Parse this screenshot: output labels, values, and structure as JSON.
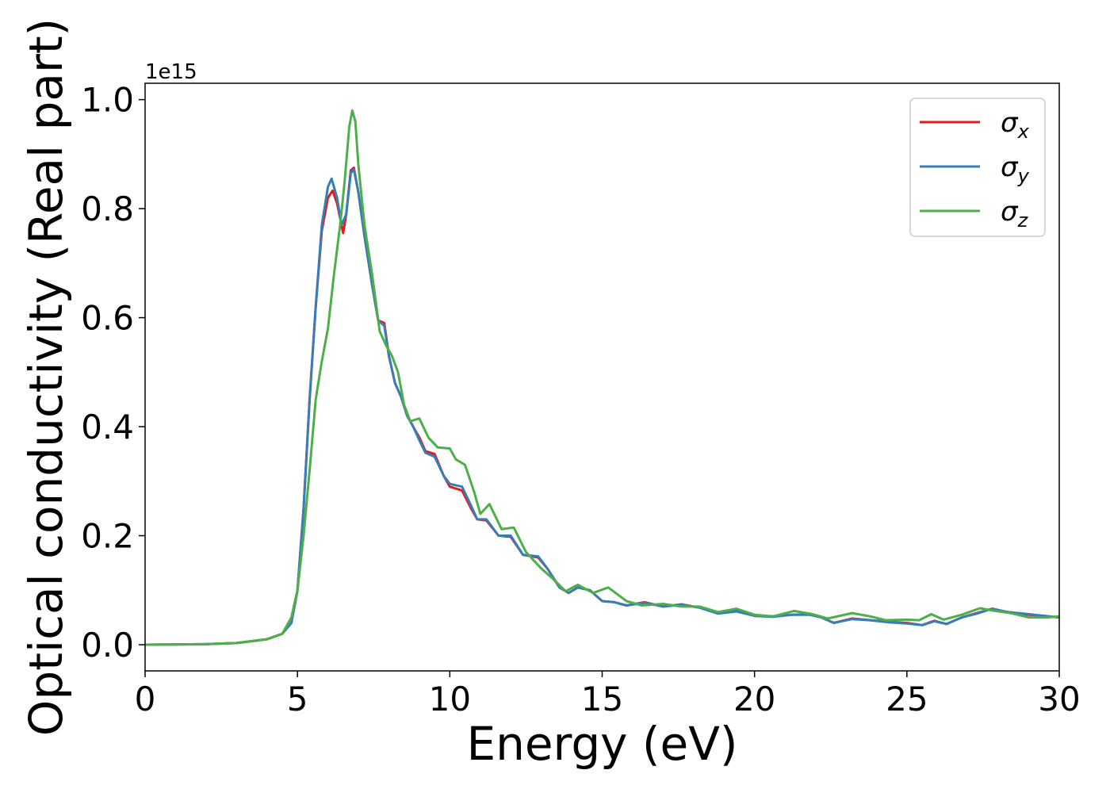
{
  "chart_data": {
    "type": "line",
    "title": "",
    "xlabel": "Energy (eV)",
    "ylabel": "Optical conductivity (Real part)",
    "y_offset_text": "1e15",
    "xlim": [
      0,
      30
    ],
    "ylim": [
      -0.048,
      1.03
    ],
    "x_ticks": [
      0,
      5,
      10,
      15,
      20,
      25,
      30
    ],
    "x_tick_labels": [
      "0",
      "5",
      "10",
      "15",
      "20",
      "25",
      "30"
    ],
    "y_ticks": [
      0.0,
      0.2,
      0.4,
      0.6,
      0.8,
      1.0
    ],
    "y_tick_labels": [
      "0.0",
      "0.2",
      "0.4",
      "0.6",
      "0.8",
      "1.0"
    ],
    "grid": false,
    "legend_position": "top-right",
    "series": [
      {
        "name": "σx",
        "symbol": "σ",
        "subscript": "x",
        "color": "#e41a1c",
        "points": [
          [
            0,
            0.0
          ],
          [
            2,
            0.001
          ],
          [
            3,
            0.003
          ],
          [
            4,
            0.01
          ],
          [
            4.5,
            0.02
          ],
          [
            4.8,
            0.04
          ],
          [
            5.0,
            0.1
          ],
          [
            5.2,
            0.25
          ],
          [
            5.4,
            0.45
          ],
          [
            5.6,
            0.62
          ],
          [
            5.8,
            0.76
          ],
          [
            6.0,
            0.82
          ],
          [
            6.15,
            0.833
          ],
          [
            6.3,
            0.81
          ],
          [
            6.5,
            0.755
          ],
          [
            6.6,
            0.79
          ],
          [
            6.75,
            0.87
          ],
          [
            6.85,
            0.875
          ],
          [
            7.0,
            0.83
          ],
          [
            7.2,
            0.75
          ],
          [
            7.45,
            0.66
          ],
          [
            7.65,
            0.595
          ],
          [
            7.85,
            0.59
          ],
          [
            8.0,
            0.53
          ],
          [
            8.2,
            0.48
          ],
          [
            8.4,
            0.455
          ],
          [
            8.6,
            0.42
          ],
          [
            8.8,
            0.4
          ],
          [
            9.0,
            0.38
          ],
          [
            9.2,
            0.355
          ],
          [
            9.5,
            0.35
          ],
          [
            9.8,
            0.31
          ],
          [
            10.0,
            0.29
          ],
          [
            10.4,
            0.283
          ],
          [
            10.7,
            0.25
          ],
          [
            10.9,
            0.23
          ],
          [
            11.2,
            0.228
          ],
          [
            11.6,
            0.2
          ],
          [
            12.0,
            0.198
          ],
          [
            12.4,
            0.165
          ],
          [
            12.9,
            0.16
          ],
          [
            13.2,
            0.14
          ],
          [
            13.6,
            0.105
          ],
          [
            13.9,
            0.095
          ],
          [
            14.2,
            0.105
          ],
          [
            14.6,
            0.1
          ],
          [
            15.0,
            0.08
          ],
          [
            15.4,
            0.078
          ],
          [
            15.8,
            0.072
          ],
          [
            16.4,
            0.078
          ],
          [
            17.0,
            0.07
          ],
          [
            17.6,
            0.074
          ],
          [
            18.2,
            0.068
          ],
          [
            18.8,
            0.058
          ],
          [
            19.4,
            0.062
          ],
          [
            20.0,
            0.053
          ],
          [
            20.6,
            0.052
          ],
          [
            21.2,
            0.055
          ],
          [
            21.8,
            0.056
          ],
          [
            22.2,
            0.05
          ],
          [
            22.6,
            0.04
          ],
          [
            23.2,
            0.048
          ],
          [
            23.8,
            0.045
          ],
          [
            24.4,
            0.042
          ],
          [
            25.0,
            0.04
          ],
          [
            25.5,
            0.036
          ],
          [
            25.9,
            0.044
          ],
          [
            26.3,
            0.038
          ],
          [
            26.8,
            0.05
          ],
          [
            27.3,
            0.058
          ],
          [
            27.8,
            0.066
          ],
          [
            28.3,
            0.06
          ],
          [
            29.0,
            0.055
          ],
          [
            29.5,
            0.053
          ],
          [
            30.0,
            0.05
          ]
        ]
      },
      {
        "name": "σy",
        "symbol": "σ",
        "subscript": "y",
        "color": "#377eb8",
        "points": [
          [
            0,
            0.0
          ],
          [
            2,
            0.001
          ],
          [
            3,
            0.003
          ],
          [
            4,
            0.01
          ],
          [
            4.5,
            0.02
          ],
          [
            4.8,
            0.04
          ],
          [
            5.0,
            0.1
          ],
          [
            5.2,
            0.25
          ],
          [
            5.4,
            0.45
          ],
          [
            5.6,
            0.62
          ],
          [
            5.8,
            0.77
          ],
          [
            6.0,
            0.84
          ],
          [
            6.12,
            0.855
          ],
          [
            6.3,
            0.82
          ],
          [
            6.45,
            0.77
          ],
          [
            6.6,
            0.79
          ],
          [
            6.75,
            0.865
          ],
          [
            6.85,
            0.872
          ],
          [
            7.0,
            0.83
          ],
          [
            7.2,
            0.75
          ],
          [
            7.45,
            0.66
          ],
          [
            7.65,
            0.595
          ],
          [
            7.85,
            0.585
          ],
          [
            8.0,
            0.53
          ],
          [
            8.2,
            0.48
          ],
          [
            8.4,
            0.455
          ],
          [
            8.6,
            0.42
          ],
          [
            8.8,
            0.4
          ],
          [
            9.0,
            0.375
          ],
          [
            9.2,
            0.352
          ],
          [
            9.5,
            0.345
          ],
          [
            9.8,
            0.31
          ],
          [
            10.0,
            0.295
          ],
          [
            10.4,
            0.29
          ],
          [
            10.7,
            0.255
          ],
          [
            10.9,
            0.23
          ],
          [
            11.2,
            0.23
          ],
          [
            11.6,
            0.2
          ],
          [
            12.0,
            0.2
          ],
          [
            12.4,
            0.165
          ],
          [
            12.9,
            0.162
          ],
          [
            13.2,
            0.14
          ],
          [
            13.6,
            0.105
          ],
          [
            13.9,
            0.095
          ],
          [
            14.2,
            0.105
          ],
          [
            14.6,
            0.1
          ],
          [
            15.0,
            0.08
          ],
          [
            15.4,
            0.078
          ],
          [
            15.8,
            0.072
          ],
          [
            16.4,
            0.077
          ],
          [
            17.0,
            0.07
          ],
          [
            17.6,
            0.073
          ],
          [
            18.2,
            0.068
          ],
          [
            18.8,
            0.057
          ],
          [
            19.4,
            0.061
          ],
          [
            20.0,
            0.053
          ],
          [
            20.6,
            0.051
          ],
          [
            21.2,
            0.055
          ],
          [
            21.8,
            0.055
          ],
          [
            22.2,
            0.05
          ],
          [
            22.6,
            0.04
          ],
          [
            23.2,
            0.047
          ],
          [
            23.8,
            0.045
          ],
          [
            24.4,
            0.041
          ],
          [
            25.0,
            0.039
          ],
          [
            25.5,
            0.036
          ],
          [
            25.9,
            0.043
          ],
          [
            26.3,
            0.038
          ],
          [
            26.8,
            0.05
          ],
          [
            27.3,
            0.057
          ],
          [
            27.8,
            0.066
          ],
          [
            28.3,
            0.06
          ],
          [
            29.0,
            0.056
          ],
          [
            29.5,
            0.053
          ],
          [
            30.0,
            0.05
          ]
        ]
      },
      {
        "name": "σz",
        "symbol": "σ",
        "subscript": "z",
        "color": "#4daf4a",
        "points": [
          [
            0,
            0.0
          ],
          [
            2,
            0.001
          ],
          [
            3,
            0.003
          ],
          [
            4,
            0.01
          ],
          [
            4.5,
            0.02
          ],
          [
            4.8,
            0.05
          ],
          [
            5.0,
            0.1
          ],
          [
            5.2,
            0.2
          ],
          [
            5.4,
            0.32
          ],
          [
            5.6,
            0.45
          ],
          [
            5.8,
            0.52
          ],
          [
            6.0,
            0.58
          ],
          [
            6.2,
            0.68
          ],
          [
            6.4,
            0.77
          ],
          [
            6.55,
            0.85
          ],
          [
            6.7,
            0.95
          ],
          [
            6.8,
            0.98
          ],
          [
            6.9,
            0.96
          ],
          [
            7.0,
            0.88
          ],
          [
            7.2,
            0.77
          ],
          [
            7.45,
            0.68
          ],
          [
            7.7,
            0.575
          ],
          [
            7.9,
            0.55
          ],
          [
            8.1,
            0.53
          ],
          [
            8.3,
            0.5
          ],
          [
            8.5,
            0.44
          ],
          [
            8.7,
            0.41
          ],
          [
            9.0,
            0.415
          ],
          [
            9.3,
            0.38
          ],
          [
            9.6,
            0.362
          ],
          [
            10.0,
            0.36
          ],
          [
            10.2,
            0.34
          ],
          [
            10.5,
            0.33
          ],
          [
            10.8,
            0.28
          ],
          [
            11.0,
            0.24
          ],
          [
            11.3,
            0.258
          ],
          [
            11.7,
            0.212
          ],
          [
            12.1,
            0.215
          ],
          [
            12.5,
            0.17
          ],
          [
            13.0,
            0.14
          ],
          [
            13.4,
            0.12
          ],
          [
            13.8,
            0.098
          ],
          [
            14.2,
            0.11
          ],
          [
            14.7,
            0.095
          ],
          [
            15.2,
            0.105
          ],
          [
            15.8,
            0.08
          ],
          [
            16.3,
            0.072
          ],
          [
            17.0,
            0.075
          ],
          [
            17.6,
            0.07
          ],
          [
            18.2,
            0.07
          ],
          [
            18.8,
            0.06
          ],
          [
            19.4,
            0.066
          ],
          [
            20.0,
            0.055
          ],
          [
            20.6,
            0.052
          ],
          [
            21.3,
            0.062
          ],
          [
            21.9,
            0.056
          ],
          [
            22.4,
            0.048
          ],
          [
            23.2,
            0.058
          ],
          [
            23.8,
            0.052
          ],
          [
            24.3,
            0.045
          ],
          [
            25.0,
            0.046
          ],
          [
            25.4,
            0.045
          ],
          [
            25.8,
            0.056
          ],
          [
            26.2,
            0.046
          ],
          [
            26.8,
            0.055
          ],
          [
            27.4,
            0.067
          ],
          [
            27.9,
            0.062
          ],
          [
            28.4,
            0.058
          ],
          [
            29.0,
            0.05
          ],
          [
            29.6,
            0.05
          ],
          [
            30.0,
            0.052
          ]
        ]
      }
    ]
  }
}
